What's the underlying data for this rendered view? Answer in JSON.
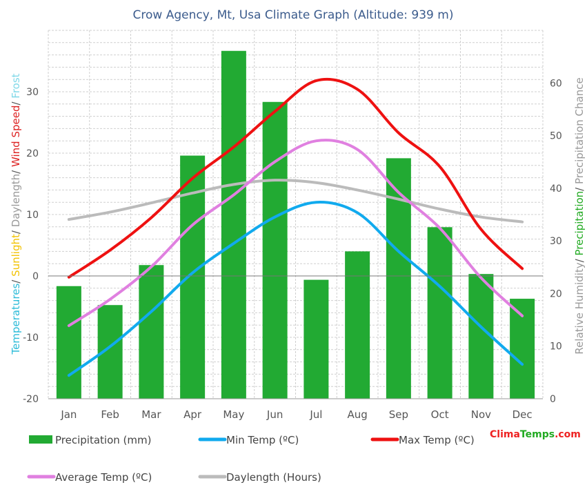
{
  "chart_data": {
    "type": "bar",
    "title": "Crow Agency, Mt, Usa Climate Graph (Altitude: 939 m)",
    "categories": [
      "Jan",
      "Feb",
      "Mar",
      "Apr",
      "May",
      "Jun",
      "Jul",
      "Aug",
      "Sep",
      "Oct",
      "Nov",
      "Dec"
    ],
    "left_axis": {
      "ylim": [
        -20,
        40
      ],
      "ticks": [
        "-20",
        "-10",
        "0",
        "10",
        "20",
        "30"
      ],
      "label_parts": [
        {
          "text": "Temperatures",
          "color": "#2bbbd8"
        },
        {
          "text": "/ ",
          "color": "#555555"
        },
        {
          "text": "Sunlight",
          "color": "#f2c200"
        },
        {
          "text": "/ ",
          "color": "#555555"
        },
        {
          "text": "Daylength",
          "color": "#999999"
        },
        {
          "text": "/ ",
          "color": "#555555"
        },
        {
          "text": "Wind Speed",
          "color": "#dd2222"
        },
        {
          "text": "/ ",
          "color": "#555555"
        },
        {
          "text": "Frost",
          "color": "#7fd8e8"
        }
      ]
    },
    "right_axis": {
      "ylim": [
        0,
        70
      ],
      "ticks": [
        "0",
        "10",
        "20",
        "30",
        "40",
        "50",
        "60"
      ],
      "label_parts": [
        {
          "text": "Relative Humidity",
          "color": "#999999"
        },
        {
          "text": "/ ",
          "color": "#555555"
        },
        {
          "text": "Precipitation",
          "color": "#22aa22"
        },
        {
          "text": "/ ",
          "color": "#555555"
        },
        {
          "text": "Precipitation Chance",
          "color": "#999999"
        }
      ]
    },
    "series": [
      {
        "name": "Precipitation (mm)",
        "kind": "bar",
        "axis": "right",
        "color": "#22aa33",
        "values": [
          21.4,
          17.8,
          25.4,
          46.2,
          66.1,
          56.4,
          22.6,
          28.0,
          45.7,
          32.6,
          23.7,
          19.0
        ]
      },
      {
        "name": "Min Temp (ºC)",
        "kind": "line",
        "axis": "left",
        "color": "#11aaee",
        "values": [
          -16.2,
          -11.5,
          -5.8,
          0.5,
          5.3,
          9.6,
          12.0,
          10.3,
          4.0,
          -1.7,
          -8.3,
          -14.4
        ]
      },
      {
        "name": "Max Temp (ºC)",
        "kind": "line",
        "axis": "left",
        "color": "#ee1111",
        "values": [
          -0.2,
          4.2,
          9.5,
          15.9,
          21.0,
          26.8,
          31.8,
          30.4,
          23.3,
          17.8,
          7.6,
          1.2
        ]
      },
      {
        "name": "Average Temp (ºC)",
        "kind": "line",
        "axis": "left",
        "color": "#e080e0",
        "values": [
          -8.1,
          -3.8,
          1.5,
          8.3,
          13.2,
          18.6,
          22.0,
          20.6,
          13.6,
          7.8,
          -0.3,
          -6.5
        ]
      },
      {
        "name": "Daylength (Hours)",
        "kind": "line",
        "axis": "left",
        "color": "#bbbbbb",
        "values": [
          9.2,
          10.4,
          11.9,
          13.5,
          14.9,
          15.6,
          15.2,
          14.0,
          12.5,
          10.9,
          9.6,
          8.8
        ]
      }
    ],
    "legend_position": "bottom",
    "grid": true,
    "brand": {
      "part1": "Clima",
      "part2": "Temps",
      "part3": ".com",
      "color1": "#ee2222",
      "color2": "#22aa22"
    }
  }
}
